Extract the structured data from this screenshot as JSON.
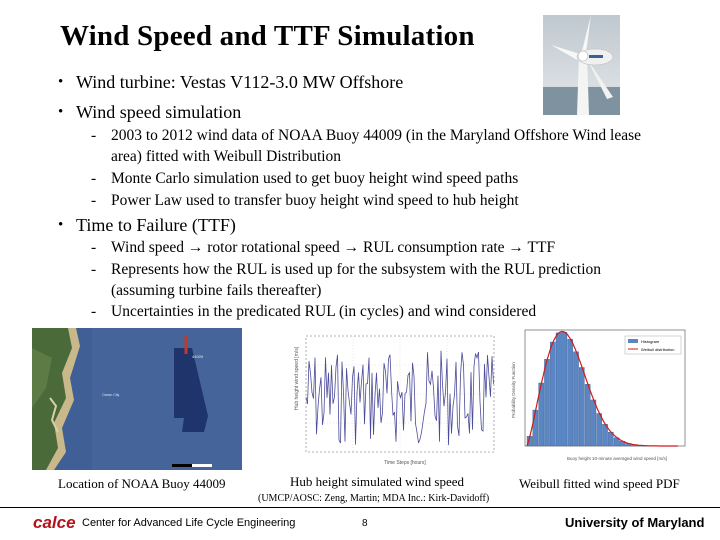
{
  "title": "Wind Speed and TTF Simulation",
  "bullets": [
    {
      "text": "Wind turbine: Vestas V112-3.0 MW Offshore"
    },
    {
      "text": "Wind speed simulation",
      "sub": [
        "2003 to 2012 wind data of NOAA Buoy 44009 (in the Maryland Offshore Wind lease area) fitted with Weibull Distribution",
        "Monte Carlo simulation used to get buoy height wind speed paths",
        "Power Law used to transfer buoy height wind speed to hub height"
      ]
    },
    {
      "text": "Time to Failure (TTF)",
      "sub": [
        "Wind speed → rotor rotational speed → RUL consumption rate → TTF",
        "Represents how the RUL is used up for the subsystem with the RUL prediction (assuming turbine fails thereafter)",
        "Uncertainties in the predicated RUL (in cycles) and wind considered"
      ]
    }
  ],
  "bullet_glyph": "•",
  "dash_glyph": "-",
  "captions": {
    "map": "Location of NOAA Buoy 44009",
    "hub": "Hub height simulated wind speed",
    "pdf": "Weibull fitted wind speed PDF"
  },
  "credit": "(UMCP/AOSC: Zeng, Martin;  MDA Inc.: Kirk-Davidoff)",
  "footer": {
    "logo_text": "calce",
    "center": "Center for Advanced Life Cycle Engineering",
    "page": "8",
    "university": "University of Maryland"
  },
  "colors": {
    "logo": "#b5121b",
    "pdf_bars": "#5b86c4",
    "pdf_curve": "#d11a1a",
    "map_sea": "#3f5f96",
    "lease_area": "#1c2f66"
  },
  "icons": {
    "turbine": "wind-turbine-photo",
    "map": "buoy-location-map"
  }
}
